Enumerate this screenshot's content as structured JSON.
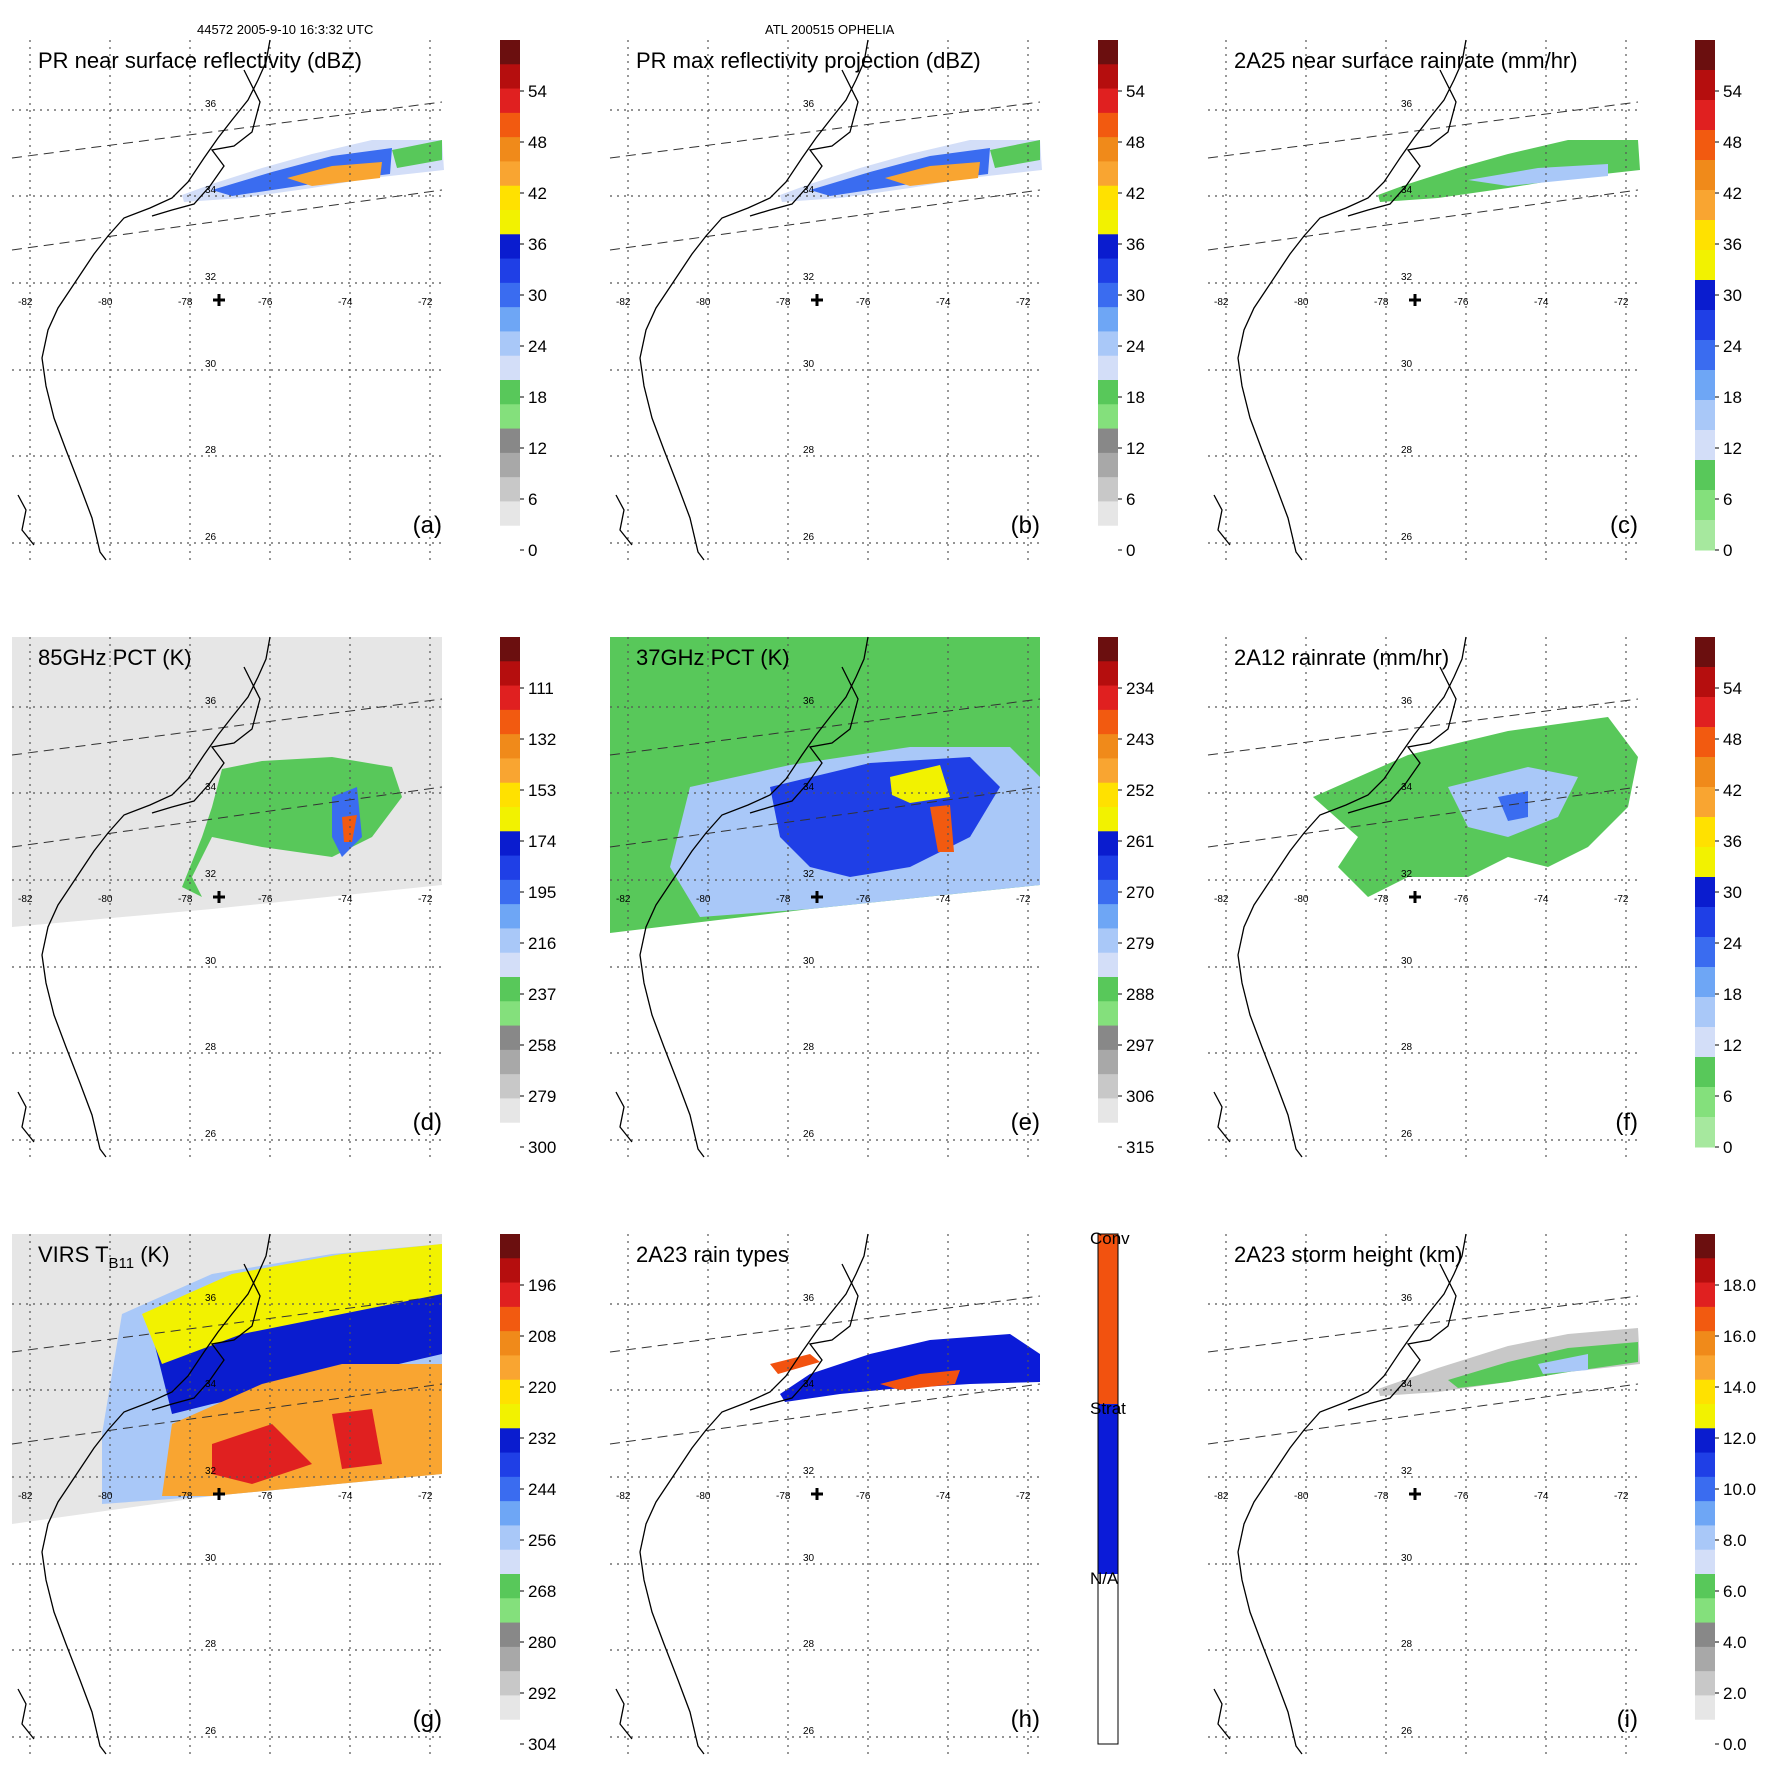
{
  "header": {
    "left": "44572 2005-9-10 16:3:32 UTC",
    "center": "ATL 200515 OPHELIA"
  },
  "geo": {
    "lon_labels": [
      "-82",
      "-80",
      "-78",
      "-76",
      "-74",
      "-72"
    ],
    "lat_labels": [
      "36",
      "34",
      "32",
      "30",
      "28",
      "26"
    ]
  },
  "chart_data": [
    {
      "panel": "(a)",
      "type": "heatmap",
      "title": "PR near surface reflectivity (dBZ)",
      "colorbar_ticks": [
        "54",
        "48",
        "42",
        "36",
        "30",
        "24",
        "18",
        "12",
        "6",
        "0"
      ],
      "colors": [
        "#6b0f0f",
        "#b50e0e",
        "#e02020",
        "#f25a10",
        "#f08a1a",
        "#f9a531",
        "#ffe100",
        "#f2f200",
        "#0a1ccf",
        "#1f3fe6",
        "#3a6cf0",
        "#6ea6f5",
        "#a9c8f8",
        "#d3def8",
        "#58c85a",
        "#84e07c",
        "#888888",
        "#a8a8a8",
        "#c8c8c8",
        "#e6e6e6",
        "#ffffff"
      ]
    },
    {
      "panel": "(b)",
      "type": "heatmap",
      "title": "PR max reflectivity projection (dBZ)",
      "colorbar_ticks": [
        "54",
        "48",
        "42",
        "36",
        "30",
        "24",
        "18",
        "12",
        "6",
        "0"
      ],
      "colors": [
        "#6b0f0f",
        "#b50e0e",
        "#e02020",
        "#f25a10",
        "#f08a1a",
        "#f9a531",
        "#ffe100",
        "#f2f200",
        "#0a1ccf",
        "#1f3fe6",
        "#3a6cf0",
        "#6ea6f5",
        "#a9c8f8",
        "#d3def8",
        "#58c85a",
        "#84e07c",
        "#888888",
        "#a8a8a8",
        "#c8c8c8",
        "#e6e6e6",
        "#ffffff"
      ]
    },
    {
      "panel": "(c)",
      "type": "heatmap",
      "title": "2A25 near surface rainrate (mm/hr)",
      "colorbar_ticks": [
        "54",
        "48",
        "42",
        "36",
        "30",
        "24",
        "18",
        "12",
        "6",
        "0"
      ],
      "colors": [
        "#6b0f0f",
        "#b50e0e",
        "#e02020",
        "#f25a10",
        "#f08a1a",
        "#f9a531",
        "#ffe100",
        "#f2f200",
        "#0a1ccf",
        "#1f3fe6",
        "#3a6cf0",
        "#6ea6f5",
        "#a9c8f8",
        "#d3def8",
        "#58c85a",
        "#84e07c",
        "#a6e89e"
      ]
    },
    {
      "panel": "(d)",
      "type": "heatmap",
      "title": "85GHz PCT (K)",
      "colorbar_ticks": [
        "111",
        "132",
        "153",
        "174",
        "195",
        "216",
        "237",
        "258",
        "279",
        "300"
      ],
      "colors": [
        "#6b0f0f",
        "#b50e0e",
        "#e02020",
        "#f25a10",
        "#f08a1a",
        "#f9a531",
        "#ffe100",
        "#f2f200",
        "#0a1ccf",
        "#1f3fe6",
        "#3a6cf0",
        "#6ea6f5",
        "#a9c8f8",
        "#d3def8",
        "#58c85a",
        "#84e07c",
        "#888888",
        "#a8a8a8",
        "#c8c8c8",
        "#e6e6e6",
        "#ffffff"
      ]
    },
    {
      "panel": "(e)",
      "type": "heatmap",
      "title": "37GHz PCT (K)",
      "colorbar_ticks": [
        "234",
        "243",
        "252",
        "261",
        "270",
        "279",
        "288",
        "297",
        "306",
        "315"
      ],
      "colors": [
        "#6b0f0f",
        "#b50e0e",
        "#e02020",
        "#f25a10",
        "#f08a1a",
        "#f9a531",
        "#ffe100",
        "#f2f200",
        "#0a1ccf",
        "#1f3fe6",
        "#3a6cf0",
        "#6ea6f5",
        "#a9c8f8",
        "#d3def8",
        "#58c85a",
        "#84e07c",
        "#888888",
        "#a8a8a8",
        "#c8c8c8",
        "#e6e6e6",
        "#ffffff"
      ]
    },
    {
      "panel": "(f)",
      "type": "heatmap",
      "title": "2A12 rainrate (mm/hr)",
      "colorbar_ticks": [
        "54",
        "48",
        "42",
        "36",
        "30",
        "24",
        "18",
        "12",
        "6",
        "0"
      ],
      "colors": [
        "#6b0f0f",
        "#b50e0e",
        "#e02020",
        "#f25a10",
        "#f08a1a",
        "#f9a531",
        "#ffe100",
        "#f2f200",
        "#0a1ccf",
        "#1f3fe6",
        "#3a6cf0",
        "#6ea6f5",
        "#a9c8f8",
        "#d3def8",
        "#58c85a",
        "#84e07c",
        "#a6e89e"
      ]
    },
    {
      "panel": "(g)",
      "type": "heatmap",
      "title": "VIRS T",
      "title_sub": "B11",
      "title_suffix": " (K)",
      "colorbar_ticks": [
        "196",
        "208",
        "220",
        "232",
        "244",
        "256",
        "268",
        "280",
        "292",
        "304"
      ],
      "colors": [
        "#6b0f0f",
        "#b50e0e",
        "#e02020",
        "#f25a10",
        "#f08a1a",
        "#f9a531",
        "#ffe100",
        "#f2f200",
        "#0a1ccf",
        "#1f3fe6",
        "#3a6cf0",
        "#6ea6f5",
        "#a9c8f8",
        "#d3def8",
        "#58c85a",
        "#84e07c",
        "#888888",
        "#a8a8a8",
        "#c8c8c8",
        "#e6e6e6",
        "#ffffff"
      ]
    },
    {
      "panel": "(h)",
      "type": "heatmap",
      "title": "2A23 rain types",
      "colorbar_ticks": [
        "Conv",
        "Strat",
        "N/A"
      ],
      "colors": [
        "#f2520f",
        "#0b1bd8",
        "#ffffff"
      ]
    },
    {
      "panel": "(i)",
      "type": "heatmap",
      "title": "2A23 storm height (km)",
      "colorbar_ticks": [
        "18.0",
        "16.0",
        "14.0",
        "12.0",
        "10.0",
        "8.0",
        "6.0",
        "4.0",
        "2.0",
        "0.0"
      ],
      "colors": [
        "#6b0f0f",
        "#b50e0e",
        "#e02020",
        "#f25a10",
        "#f08a1a",
        "#f9a531",
        "#ffe100",
        "#f2f200",
        "#0a1ccf",
        "#1f3fe6",
        "#3a6cf0",
        "#6ea6f5",
        "#a9c8f8",
        "#d3def8",
        "#58c85a",
        "#84e07c",
        "#888888",
        "#a8a8a8",
        "#c8c8c8",
        "#e6e6e6",
        "#ffffff"
      ]
    }
  ]
}
